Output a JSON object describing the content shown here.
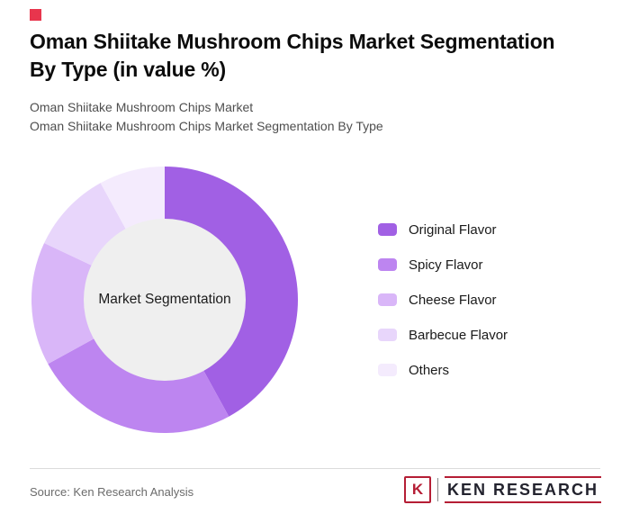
{
  "header": {
    "accent_color": "#e8354d",
    "title_line1": "Oman Shiitake Mushroom Chips Market Segmentation",
    "title_line2": "By Type (in value %)",
    "subtitle_line1": "Oman Shiitake Mushroom Chips Market",
    "subtitle_line2": "Oman Shiitake Mushroom Chips Market Segmentation By Type"
  },
  "chart_data": {
    "type": "pie",
    "variant": "donut",
    "title": "Oman Shiitake Mushroom Chips Market Segmentation By Type (in value %)",
    "center_label": "Market Segmentation",
    "categories": [
      "Original Flavor",
      "Spicy Flavor",
      "Cheese Flavor",
      "Barbecue Flavor",
      "Others"
    ],
    "values": [
      42,
      25,
      15,
      10,
      8
    ],
    "colors": [
      "#a160e4",
      "#bd85f0",
      "#d9b6f8",
      "#e8d6fb",
      "#f4ebfd"
    ],
    "center_fill": "#efefef",
    "legend_position": "right",
    "start_angle_deg": 0,
    "direction": "clockwise"
  },
  "footer": {
    "source": "Source: Ken Research Analysis",
    "logo": {
      "k": "K",
      "text": "KEN RESEARCH",
      "accent_color": "#b51e35"
    }
  }
}
